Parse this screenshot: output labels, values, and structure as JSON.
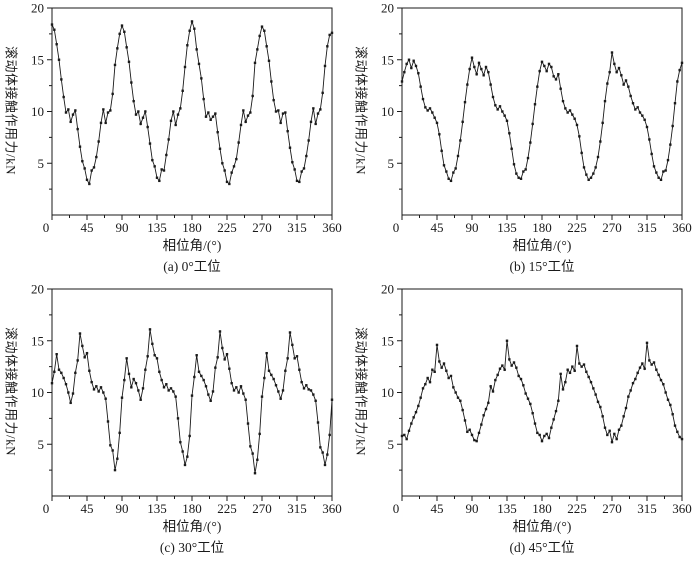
{
  "figure": {
    "background": "#ffffff",
    "axis_color": "#1a1a1a",
    "line_color": "#1a1a1a",
    "marker": "square"
  },
  "chart_data": [
    {
      "type": "line",
      "caption": "(a) 0°工位",
      "xlabel": "相位角/(°)",
      "ylabel": "滚动体接触作用力/kN",
      "xlim": [
        0,
        360
      ],
      "ylim": [
        0,
        20
      ],
      "xticks": [
        0,
        45,
        90,
        135,
        180,
        225,
        270,
        315,
        360
      ],
      "yticks": [
        5,
        10,
        15,
        20
      ],
      "x_minor_step": 22.5,
      "y_minor_step": 2.5,
      "x_step": 3,
      "y": [
        18.4,
        17.9,
        16.5,
        15.0,
        13.1,
        11.4,
        9.9,
        10.2,
        9.0,
        9.7,
        10.1,
        8.3,
        6.6,
        5.2,
        4.5,
        3.4,
        3.0,
        4.3,
        4.6,
        5.6,
        7.1,
        8.9,
        10.2,
        8.9,
        9.9,
        10.1,
        11.7,
        14.5,
        16.1,
        17.5,
        18.3,
        17.7,
        16.2,
        14.8,
        12.8,
        11.0,
        9.7,
        10.0,
        8.8,
        9.4,
        10.0,
        8.5,
        6.9,
        5.3,
        4.7,
        3.6,
        3.3,
        4.4,
        4.3,
        5.8,
        7.3,
        9.1,
        10.0,
        8.7,
        9.7,
        10.3,
        12.0,
        14.3,
        16.4,
        17.8,
        18.7,
        18.0,
        16.0,
        14.6,
        13.2,
        11.2,
        9.5,
        9.9,
        9.2,
        9.5,
        9.8,
        8.0,
        6.4,
        5.0,
        4.3,
        3.2,
        3.0,
        4.1,
        4.7,
        5.4,
        7.0,
        8.7,
        10.1,
        9.0,
        9.6,
        9.9,
        11.5,
        14.7,
        16.0,
        17.3,
        18.2,
        17.8,
        16.3,
        14.9,
        12.9,
        11.1,
        10.0,
        10.1,
        8.9,
        9.8,
        9.9,
        8.1,
        6.5,
        5.1,
        4.4,
        3.3,
        3.2,
        4.2,
        4.5,
        5.7,
        7.2,
        9.0,
        10.3,
        8.8,
        9.8,
        10.2,
        11.8,
        14.4,
        16.3,
        17.4,
        17.6
      ]
    },
    {
      "type": "line",
      "caption": "(b) 15°工位",
      "xlabel": "相位角/(°)",
      "ylabel": "滚动体接触作用力/kN",
      "xlim": [
        0,
        360
      ],
      "ylim": [
        0,
        20
      ],
      "xticks": [
        0,
        45,
        90,
        135,
        180,
        225,
        270,
        315,
        360
      ],
      "yticks": [
        5,
        10,
        15,
        20
      ],
      "x_minor_step": 22.5,
      "y_minor_step": 2.5,
      "x_step": 3,
      "y": [
        12.9,
        13.8,
        14.6,
        15.0,
        14.2,
        14.9,
        14.4,
        13.7,
        12.4,
        11.2,
        10.4,
        10.1,
        10.3,
        9.9,
        9.4,
        8.9,
        7.8,
        6.2,
        4.8,
        4.2,
        3.5,
        3.3,
        4.1,
        4.5,
        5.7,
        7.2,
        9.0,
        10.9,
        12.6,
        14.1,
        15.2,
        14.3,
        13.6,
        14.7,
        14.1,
        13.5,
        14.3,
        13.8,
        12.6,
        11.4,
        10.6,
        10.2,
        10.5,
        10.0,
        9.6,
        9.1,
        7.9,
        6.4,
        4.9,
        4.0,
        3.6,
        3.5,
        4.2,
        4.4,
        5.5,
        7.0,
        8.8,
        10.7,
        12.4,
        13.9,
        14.8,
        14.4,
        13.9,
        14.6,
        14.3,
        13.4,
        13.1,
        13.6,
        12.2,
        11.0,
        10.3,
        9.9,
        10.1,
        9.7,
        9.3,
        8.7,
        7.6,
        6.0,
        4.6,
        3.9,
        3.4,
        3.6,
        4.0,
        4.6,
        5.6,
        7.1,
        8.9,
        11.0,
        12.7,
        13.8,
        15.7,
        14.6,
        13.8,
        14.2,
        13.5,
        12.6,
        13.0,
        12.4,
        11.5,
        10.8,
        10.2,
        10.4,
        9.9,
        9.6,
        9.2,
        8.5,
        7.3,
        5.9,
        4.7,
        4.1,
        3.6,
        3.4,
        4.2,
        4.3,
        5.3,
        6.8,
        8.6,
        10.8,
        12.9,
        14.0,
        14.7
      ]
    },
    {
      "type": "line",
      "caption": "(c) 30°工位",
      "xlabel": "相位角/(°)",
      "ylabel": "滚动体接触作用力/kN",
      "xlim": [
        0,
        360
      ],
      "ylim": [
        0,
        20
      ],
      "xticks": [
        0,
        45,
        90,
        135,
        180,
        225,
        270,
        315,
        360
      ],
      "yticks": [
        5,
        10,
        15,
        20
      ],
      "x_minor_step": 22.5,
      "y_minor_step": 2.5,
      "x_step": 3,
      "y": [
        10.9,
        12.0,
        13.7,
        12.2,
        11.9,
        11.4,
        10.8,
        10.0,
        9.0,
        9.9,
        11.9,
        13.1,
        15.7,
        14.5,
        13.4,
        13.8,
        12.1,
        11.0,
        10.3,
        10.6,
        10.1,
        10.5,
        10.0,
        9.4,
        7.2,
        4.9,
        4.4,
        2.5,
        3.6,
        6.1,
        9.5,
        11.2,
        13.3,
        11.8,
        10.5,
        11.3,
        10.9,
        10.2,
        9.3,
        10.4,
        12.2,
        13.5,
        16.1,
        14.7,
        13.6,
        13.3,
        12.0,
        11.2,
        10.5,
        10.8,
        10.2,
        10.4,
        10.1,
        9.6,
        7.5,
        5.2,
        4.3,
        3.0,
        3.8,
        5.8,
        9.7,
        11.5,
        13.6,
        12.0,
        11.6,
        11.2,
        10.6,
        9.8,
        9.2,
        10.1,
        12.4,
        13.4,
        15.9,
        14.3,
        13.2,
        13.7,
        12.3,
        10.9,
        10.2,
        10.5,
        10.0,
        10.6,
        9.9,
        9.3,
        7.0,
        4.8,
        4.1,
        2.2,
        3.5,
        6.0,
        9.6,
        11.4,
        13.8,
        12.1,
        11.7,
        11.3,
        10.7,
        10.1,
        9.4,
        10.2,
        12.1,
        13.3,
        15.8,
        14.6,
        13.3,
        13.5,
        12.2,
        11.0,
        10.4,
        10.7,
        10.3,
        10.2,
        9.8,
        9.2,
        7.1,
        4.7,
        4.2,
        3.0,
        4.0,
        5.9,
        9.3
      ]
    },
    {
      "type": "line",
      "caption": "(d) 45°工位",
      "xlabel": "相位角/(°)",
      "ylabel": "滚动体接触作用力/kN",
      "xlim": [
        0,
        360
      ],
      "ylim": [
        0,
        20
      ],
      "xticks": [
        0,
        45,
        90,
        135,
        180,
        225,
        270,
        315,
        360
      ],
      "yticks": [
        5,
        10,
        15,
        20
      ],
      "x_minor_step": 22.5,
      "y_minor_step": 2.5,
      "x_step": 3,
      "y": [
        5.8,
        5.9,
        5.5,
        6.3,
        7.0,
        7.6,
        8.1,
        8.7,
        9.5,
        10.4,
        10.8,
        11.4,
        11.0,
        12.2,
        12.0,
        14.6,
        13.0,
        12.4,
        12.8,
        12.1,
        11.4,
        11.6,
        10.5,
        10.0,
        9.5,
        9.2,
        8.3,
        7.3,
        6.2,
        6.4,
        5.9,
        5.4,
        5.3,
        6.1,
        6.9,
        7.8,
        8.4,
        9.0,
        10.6,
        10.1,
        11.2,
        11.7,
        12.3,
        12.6,
        12.2,
        15.0,
        13.2,
        12.6,
        12.9,
        12.4,
        11.6,
        11.3,
        10.7,
        9.9,
        9.4,
        8.9,
        8.0,
        7.0,
        6.1,
        5.9,
        5.3,
        5.8,
        6.0,
        5.6,
        6.6,
        7.4,
        8.2,
        9.2,
        11.8,
        10.3,
        11.0,
        12.2,
        11.9,
        12.5,
        12.1,
        14.5,
        12.8,
        12.5,
        12.7,
        12.0,
        11.5,
        11.0,
        10.4,
        9.8,
        9.1,
        8.6,
        7.7,
        6.6,
        5.9,
        6.3,
        5.2,
        6.0,
        5.5,
        6.4,
        6.8,
        7.7,
        8.5,
        9.6,
        10.2,
        10.9,
        11.3,
        11.9,
        12.4,
        12.8,
        12.3,
        14.8,
        13.1,
        12.7,
        12.9,
        12.2,
        11.7,
        11.2,
        10.8,
        10.0,
        9.3,
        8.8,
        7.9,
        6.8,
        6.2,
        5.7,
        5.5
      ]
    }
  ]
}
